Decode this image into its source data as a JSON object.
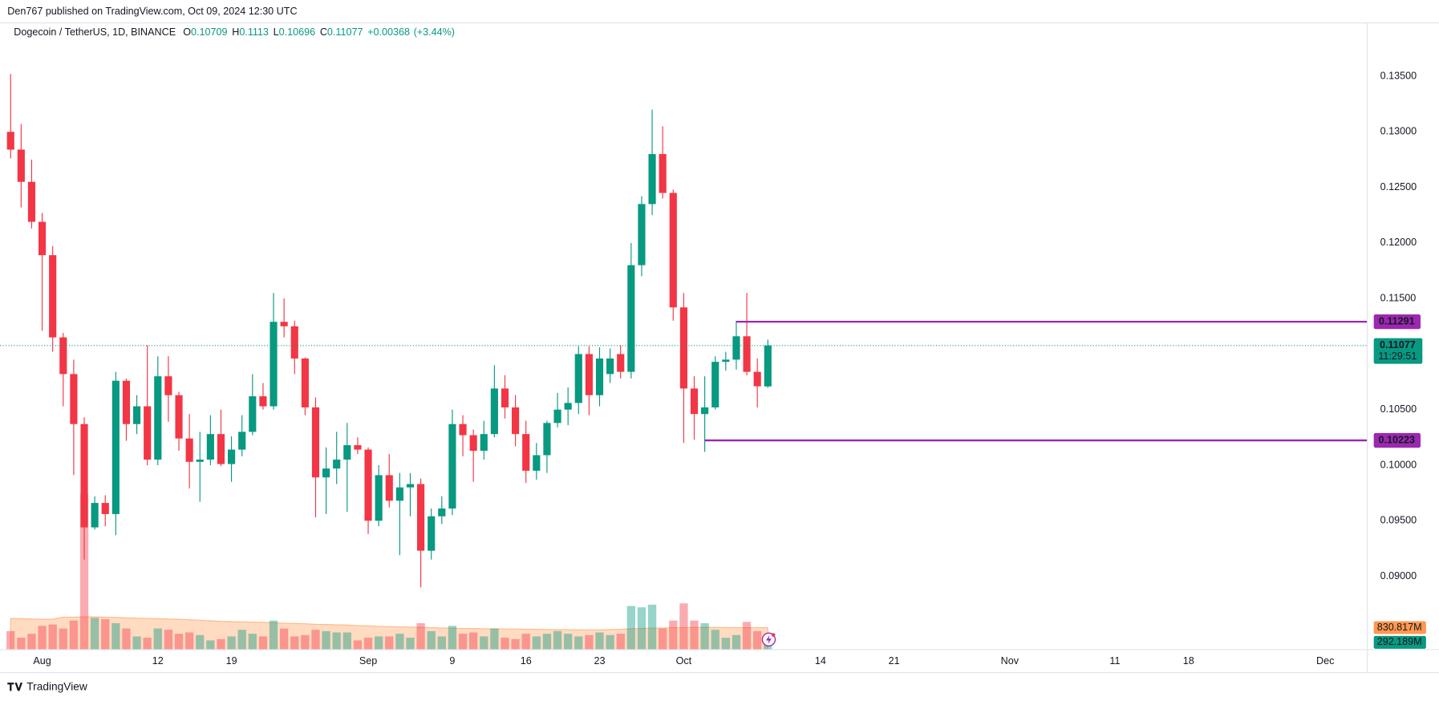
{
  "header": {
    "published": "Den767 published on TradingView.com, Oct 09, 2024 12:30 UTC",
    "footer": "TradingView"
  },
  "chart_data": {
    "type": "candlestick",
    "title": "Dogecoin / TetherUS, 1D, BINANCE",
    "ohlc_letters": [
      "O",
      "H",
      "L",
      "C"
    ],
    "change": "+0.00368",
    "change_percent": "(+3.44%)",
    "up_color": "#089981",
    "down_color": "#f23645",
    "x": [
      "2024-07-29",
      "2024-07-30",
      "2024-07-31",
      "2024-08-01",
      "2024-08-02",
      "2024-08-03",
      "2024-08-04",
      "2024-08-05",
      "2024-08-06",
      "2024-08-07",
      "2024-08-08",
      "2024-08-09",
      "2024-08-10",
      "2024-08-11",
      "2024-08-12",
      "2024-08-13",
      "2024-08-14",
      "2024-08-15",
      "2024-08-16",
      "2024-08-17",
      "2024-08-18",
      "2024-08-19",
      "2024-08-20",
      "2024-08-21",
      "2024-08-22",
      "2024-08-23",
      "2024-08-24",
      "2024-08-25",
      "2024-08-26",
      "2024-08-27",
      "2024-08-28",
      "2024-08-29",
      "2024-08-30",
      "2024-08-31",
      "2024-09-01",
      "2024-09-02",
      "2024-09-03",
      "2024-09-04",
      "2024-09-05",
      "2024-09-06",
      "2024-09-07",
      "2024-09-08",
      "2024-09-09",
      "2024-09-10",
      "2024-09-11",
      "2024-09-12",
      "2024-09-13",
      "2024-09-14",
      "2024-09-15",
      "2024-09-16",
      "2024-09-17",
      "2024-09-18",
      "2024-09-19",
      "2024-09-20",
      "2024-09-21",
      "2024-09-22",
      "2024-09-23",
      "2024-09-24",
      "2024-09-25",
      "2024-09-26",
      "2024-09-27",
      "2024-09-28",
      "2024-09-29",
      "2024-09-30",
      "2024-10-01",
      "2024-10-02",
      "2024-10-03",
      "2024-10-04",
      "2024-10-05",
      "2024-10-06",
      "2024-10-07",
      "2024-10-08",
      "2024-10-09"
    ],
    "open": [
      0.13,
      0.1284,
      0.1255,
      0.1219,
      0.1189,
      0.1115,
      0.1082,
      0.1037,
      0.0944,
      0.0966,
      0.0956,
      0.1076,
      0.1037,
      0.1053,
      0.1005,
      0.108,
      0.1063,
      0.1024,
      0.1003,
      0.1005,
      0.1028,
      0.1001,
      0.1014,
      0.103,
      0.1062,
      0.1053,
      0.1129,
      0.1125,
      0.1096,
      0.1052,
      0.0989,
      0.0997,
      0.1005,
      0.1018,
      0.1014,
      0.095,
      0.0991,
      0.0968,
      0.098,
      0.0983,
      0.0923,
      0.0954,
      0.0961,
      0.1037,
      0.1027,
      0.1013,
      0.1028,
      0.1069,
      0.1052,
      0.1028,
      0.0995,
      0.1009,
      0.1038,
      0.105,
      0.1056,
      0.11,
      0.1063,
      0.1082,
      0.11,
      0.1084,
      0.118,
      0.1235,
      0.128,
      0.1245,
      0.1142,
      0.1069,
      0.1046,
      0.1052,
      0.1093,
      0.1095,
      0.1116,
      0.1084,
      0.10709
    ],
    "high": [
      0.1352,
      0.1307,
      0.1275,
      0.1227,
      0.1197,
      0.1119,
      0.1095,
      0.1043,
      0.0972,
      0.0973,
      0.1084,
      0.1078,
      0.1063,
      0.1108,
      0.1098,
      0.1098,
      0.1066,
      0.1046,
      0.103,
      0.1045,
      0.105,
      0.1026,
      0.1045,
      0.1082,
      0.1074,
      0.1155,
      0.115,
      0.113,
      0.1097,
      0.1061,
      0.1016,
      0.103,
      0.1038,
      0.1025,
      0.1016,
      0.1,
      0.101,
      0.0993,
      0.0993,
      0.0988,
      0.0961,
      0.0972,
      0.105,
      0.1045,
      0.1032,
      0.104,
      0.109,
      0.1081,
      0.1063,
      0.104,
      0.102,
      0.104,
      0.1065,
      0.107,
      0.1107,
      0.1107,
      0.1106,
      0.1105,
      0.1108,
      0.12,
      0.1242,
      0.132,
      0.1305,
      0.1248,
      0.1155,
      0.108,
      0.108,
      0.1098,
      0.1102,
      0.113,
      0.1155,
      0.1096,
      0.1113
    ],
    "low": [
      0.1276,
      0.1232,
      0.1213,
      0.1121,
      0.1102,
      0.1053,
      0.0991,
      0.0915,
      0.0942,
      0.0945,
      0.0937,
      0.1022,
      0.1028,
      0.1,
      0.1,
      0.1039,
      0.1013,
      0.0979,
      0.0967,
      0.1,
      0.0999,
      0.0985,
      0.1008,
      0.1027,
      0.105,
      0.105,
      0.1115,
      0.1082,
      0.1045,
      0.0953,
      0.0956,
      0.0983,
      0.0958,
      0.101,
      0.0938,
      0.0945,
      0.0962,
      0.0919,
      0.0954,
      0.089,
      0.0915,
      0.0947,
      0.0955,
      0.1008,
      0.0985,
      0.1005,
      0.1025,
      0.1042,
      0.1017,
      0.0984,
      0.0987,
      0.0993,
      0.1034,
      0.1036,
      0.1046,
      0.1045,
      0.1053,
      0.1074,
      0.1078,
      0.1078,
      0.117,
      0.1225,
      0.124,
      0.113,
      0.102,
      0.1023,
      0.1012,
      0.105,
      0.1085,
      0.1086,
      0.1081,
      0.1052,
      0.10696
    ],
    "close": [
      0.1284,
      0.1255,
      0.1219,
      0.1189,
      0.1115,
      0.1082,
      0.1037,
      0.0944,
      0.0966,
      0.0956,
      0.1076,
      0.1037,
      0.1053,
      0.1005,
      0.108,
      0.1063,
      0.1024,
      0.1003,
      0.1005,
      0.1028,
      0.1001,
      0.1014,
      0.103,
      0.1062,
      0.1053,
      0.1129,
      0.1125,
      0.1096,
      0.1052,
      0.0989,
      0.0997,
      0.1005,
      0.1018,
      0.1014,
      0.095,
      0.0991,
      0.0968,
      0.098,
      0.0983,
      0.0923,
      0.0954,
      0.0961,
      0.1037,
      0.1027,
      0.1013,
      0.1028,
      0.1069,
      0.1052,
      0.1028,
      0.0995,
      0.1009,
      0.1038,
      0.105,
      0.1056,
      0.11,
      0.1063,
      0.1096,
      0.1096,
      0.1084,
      0.118,
      0.1235,
      0.128,
      0.1245,
      0.1142,
      0.1069,
      0.1046,
      0.1052,
      0.1093,
      0.1095,
      0.1116,
      0.1084,
      0.1071,
      0.11077
    ],
    "volume": {
      "values": [
        700,
        450,
        600,
        900,
        950,
        800,
        1100,
        5900,
        1200,
        1150,
        1000,
        800,
        500,
        450,
        800,
        750,
        600,
        650,
        550,
        350,
        400,
        500,
        750,
        600,
        500,
        1100,
        800,
        500,
        550,
        750,
        700,
        650,
        650,
        350,
        450,
        500,
        500,
        600,
        450,
        1000,
        700,
        500,
        900,
        600,
        650,
        500,
        800,
        450,
        400,
        600,
        500,
        600,
        700,
        600,
        500,
        550,
        650,
        550,
        600,
        1650,
        1600,
        1700,
        800,
        1100,
        1750,
        1100,
        1000,
        750,
        450,
        550,
        1050,
        700,
        292.189
      ],
      "last_label": {
        "value": 292.189,
        "label": "292.189M"
      }
    },
    "volume_ma": {
      "color": "#ff9850",
      "values": [
        1180,
        1170,
        1160,
        1150,
        1150,
        1230,
        1230,
        1240,
        1240,
        1230,
        1220,
        1200,
        1190,
        1180,
        1170,
        1160,
        1150,
        1130,
        1110,
        1090,
        1070,
        1060,
        1050,
        1040,
        1030,
        1020,
        1000,
        990,
        980,
        960,
        950,
        940,
        930,
        910,
        900,
        880,
        870,
        860,
        850,
        840,
        830,
        820,
        810,
        800,
        800,
        790,
        790,
        780,
        780,
        770,
        770,
        760,
        760,
        760,
        750,
        750,
        750,
        760,
        770,
        790,
        800,
        810,
        820,
        830,
        835,
        840,
        845,
        840,
        835,
        832,
        831,
        830,
        830.817
      ],
      "last_label": {
        "value": 830.817,
        "label": "830.817M"
      }
    },
    "hlines": {
      "color": "#9c27b0",
      "lines": [
        {
          "value": 0.11291,
          "from": "2024-10-06"
        },
        {
          "value": 0.10223,
          "from": "2024-10-03"
        }
      ]
    },
    "countdown": "11:29:51",
    "ylim": [
      0.0834,
      0.1398
    ],
    "yticks": [
      {
        "value": 0.09,
        "label": "0.09000"
      },
      {
        "value": 0.095,
        "label": "0.09500"
      },
      {
        "value": 0.1,
        "label": "0.10000"
      },
      {
        "value": 0.105,
        "label": "0.10500"
      },
      {
        "value": 0.11,
        "label": "0.11000"
      },
      {
        "value": 0.115,
        "label": "0.11500"
      },
      {
        "value": 0.12,
        "label": "0.12000"
      },
      {
        "value": 0.125,
        "label": "0.12500"
      },
      {
        "value": 0.13,
        "label": "0.13000"
      },
      {
        "value": 0.135,
        "label": "0.13500"
      }
    ],
    "xlim": [
      "2024-07-28",
      "2024-12-05"
    ],
    "xticks": [
      {
        "value": "2024-08-01",
        "label": "Aug"
      },
      {
        "value": "2024-08-12",
        "label": "12"
      },
      {
        "value": "2024-08-19",
        "label": "19"
      },
      {
        "value": "2024-09-01",
        "label": "Sep"
      },
      {
        "value": "2024-09-09",
        "label": "9"
      },
      {
        "value": "2024-09-16",
        "label": "16"
      },
      {
        "value": "2024-09-23",
        "label": "23"
      },
      {
        "value": "2024-10-01",
        "label": "Oct"
      },
      {
        "value": "2024-10-14",
        "label": "14"
      },
      {
        "value": "2024-10-21",
        "label": "21"
      },
      {
        "value": "2024-11-01",
        "label": "Nov"
      },
      {
        "value": "2024-11-11",
        "label": "11"
      },
      {
        "value": "2024-11-18",
        "label": "18"
      },
      {
        "value": "2024-12-01",
        "label": "Dec"
      }
    ],
    "grid": true
  }
}
